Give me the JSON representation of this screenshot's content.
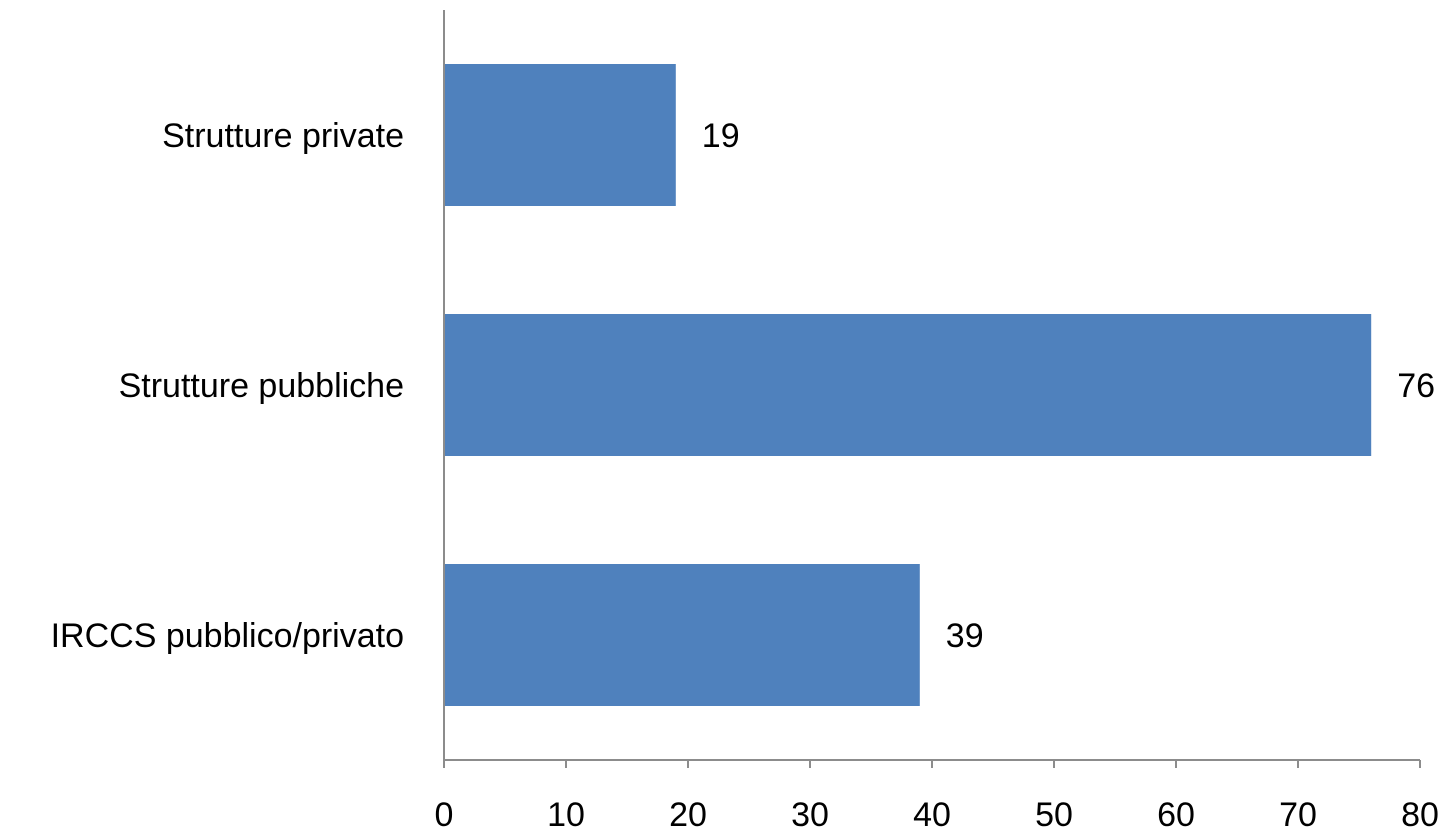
{
  "chart_data": {
    "type": "bar",
    "orientation": "horizontal",
    "categories": [
      "Strutture private",
      "Strutture pubbliche",
      "IRCCS pubblico/privato"
    ],
    "values": [
      19,
      76,
      39
    ],
    "data_labels": [
      "19",
      "76",
      "39"
    ],
    "title": "",
    "xlabel": "",
    "ylabel": "",
    "xlim": [
      0,
      80
    ],
    "xticks": [
      0,
      10,
      20,
      30,
      40,
      50,
      60,
      70,
      80
    ],
    "xtick_labels": [
      "0",
      "10",
      "20",
      "30",
      "40",
      "50",
      "60",
      "70",
      "80"
    ],
    "grid": false,
    "legend": "none",
    "bar_color": "#4f81bd",
    "axis_color": "#8c8c8c"
  }
}
